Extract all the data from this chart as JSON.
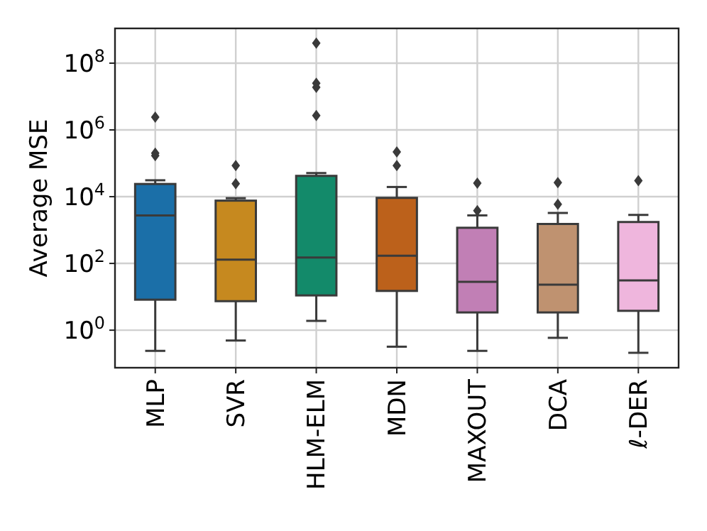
{
  "chart_data": {
    "type": "box",
    "ylabel": "Average MSE",
    "log": true,
    "grid": true,
    "categories": [
      "MLP",
      "SVR",
      "HLM-ELM",
      "MDN",
      "MAXOUT",
      "DCA",
      "ℓ-DER"
    ],
    "colors": [
      "#1b6fa8",
      "#c6891f",
      "#138a6a",
      "#bc611b",
      "#c17fb5",
      "#bf9270",
      "#efb6dd"
    ],
    "ylim": [
      0.075,
      1100000000.0
    ],
    "yticks": [
      {
        "value": 1,
        "label": "10$^{0}$"
      },
      {
        "value": 100,
        "label": "10$^{2}$"
      },
      {
        "value": 10000,
        "label": "10$^{4}$"
      },
      {
        "value": 1000000,
        "label": "10$^{6}$"
      },
      {
        "value": 100000000,
        "label": "10$^{8}$"
      }
    ],
    "boxes": [
      {
        "low": 0.24,
        "q1": 8.2,
        "median": 2750,
        "q3": 24000,
        "high": 31000,
        "outliers": [
          170000,
          200000,
          2400000
        ]
      },
      {
        "low": 0.49,
        "q1": 7.4,
        "median": 130,
        "q3": 7600,
        "high": 9000,
        "outliers": [
          24500,
          85000
        ]
      },
      {
        "low": 1.9,
        "q1": 11,
        "median": 150,
        "q3": 42000,
        "high": 51000,
        "outliers": [
          2700000,
          19000000,
          25000000,
          400000000
        ]
      },
      {
        "low": 0.32,
        "q1": 15,
        "median": 170,
        "q3": 9200,
        "high": 19500,
        "outliers": [
          85000,
          220000
        ]
      },
      {
        "low": 0.24,
        "q1": 3.4,
        "median": 28,
        "q3": 1170,
        "high": 2750,
        "outliers": [
          3800,
          25500
        ]
      },
      {
        "low": 0.59,
        "q1": 3.4,
        "median": 23,
        "q3": 1520,
        "high": 3250,
        "outliers": [
          5900,
          26500
        ]
      },
      {
        "low": 0.21,
        "q1": 3.8,
        "median": 31,
        "q3": 1740,
        "high": 2840,
        "outliers": [
          30000
        ]
      }
    ]
  }
}
